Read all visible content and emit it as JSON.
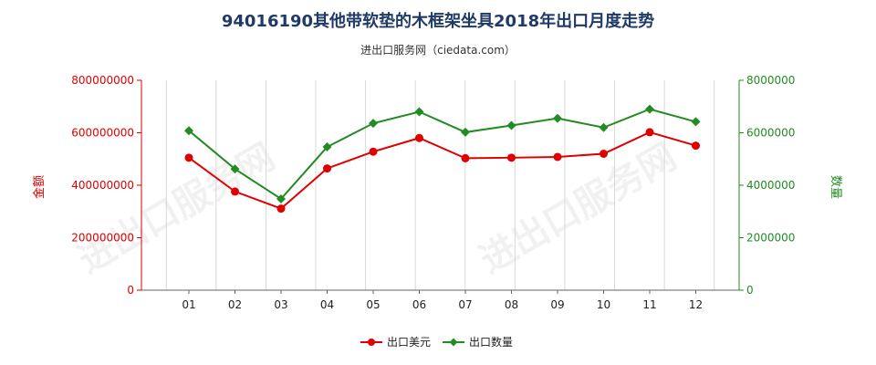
{
  "title": "94016190其他带软垫的木框架坐具2018年出口月度走势",
  "subtitle": "进出口服务网（ciedata.com）",
  "watermark_text": "进出口服务网",
  "chart_data": {
    "type": "line",
    "categories": [
      "01",
      "02",
      "03",
      "04",
      "05",
      "06",
      "07",
      "08",
      "09",
      "10",
      "11",
      "12"
    ],
    "y_left": {
      "label": "金额",
      "ylim": [
        0,
        800000000
      ],
      "ticks": [
        0,
        200000000,
        400000000,
        600000000,
        800000000
      ],
      "tick_labels": [
        "0",
        "200000000",
        "400000000",
        "600000000",
        "800000000"
      ],
      "color": "#e00000"
    },
    "y_right": {
      "label": "数量",
      "ylim": [
        0,
        8000000
      ],
      "ticks": [
        0,
        2000000,
        4000000,
        6000000,
        8000000
      ],
      "tick_labels": [
        "0",
        "2000000",
        "4000000",
        "6000000",
        "8000000"
      ],
      "color": "#228b22"
    },
    "series": [
      {
        "name": "出口美元",
        "axis": "left",
        "color": "#e00000",
        "values": [
          505000000,
          376000000,
          311000000,
          464000000,
          528000000,
          580000000,
          503000000,
          505000000,
          508000000,
          520000000,
          602000000,
          551000000
        ]
      },
      {
        "name": "出口数量",
        "axis": "right",
        "color": "#228b22",
        "values": [
          6080000,
          4620000,
          3480000,
          5460000,
          6360000,
          6800000,
          6020000,
          6280000,
          6550000,
          6200000,
          6900000,
          6420000
        ]
      }
    ],
    "grid": "vertical",
    "legend_position": "bottom-center"
  }
}
